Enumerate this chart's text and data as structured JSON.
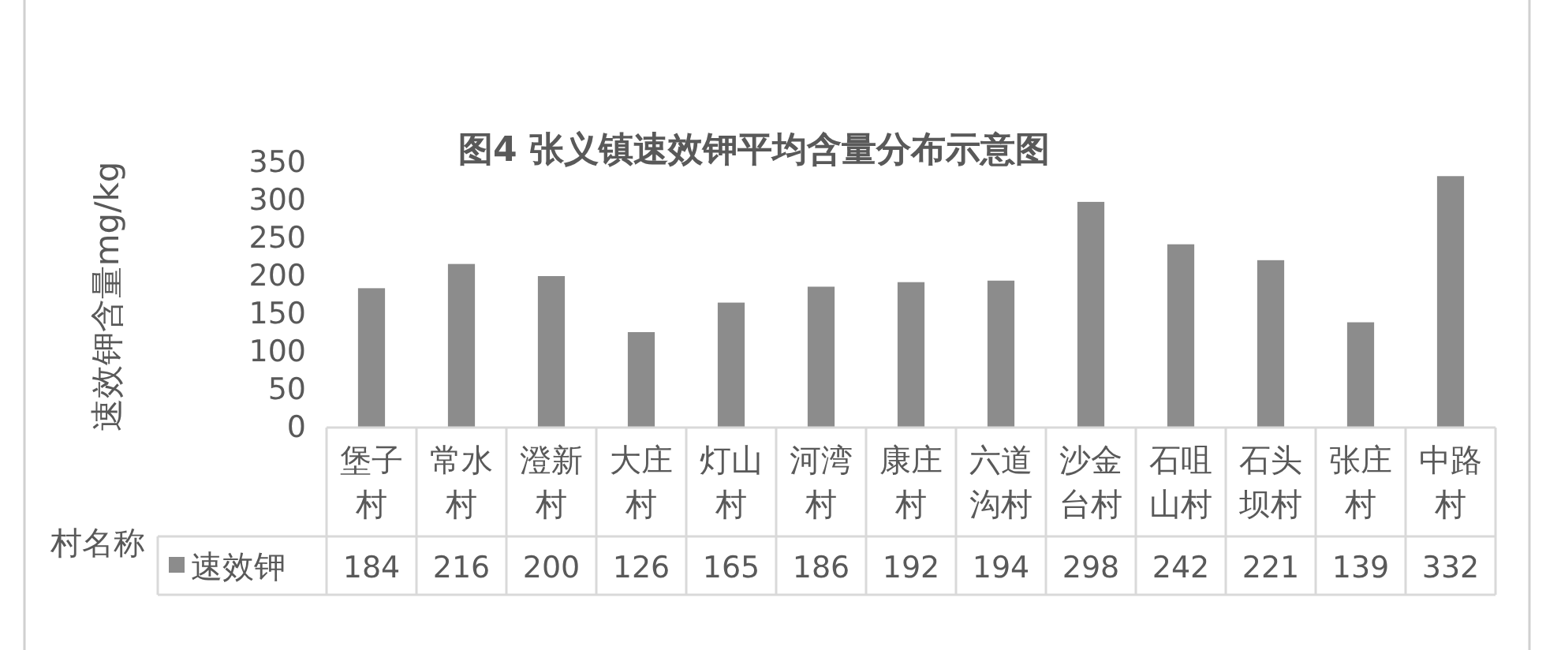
{
  "chart_data": {
    "type": "bar",
    "title": "图4 张义镇速效钾平均含量分布示意图",
    "xlabel": "村名称",
    "ylabel": "速效钾含量mg/kg",
    "categories": [
      "堡子村",
      "常水村",
      "澄新村",
      "大庄村",
      "灯山村",
      "河湾村",
      "康庄村",
      "六道沟村",
      "沙金台村",
      "石咀山村",
      "石头坝村",
      "张庄村",
      "中路村"
    ],
    "series": [
      {
        "name": "速效钾",
        "color": "#8c8c8c",
        "values": [
          184,
          216,
          200,
          126,
          165,
          186,
          192,
          194,
          298,
          242,
          221,
          139,
          332
        ]
      }
    ],
    "ylim": [
      0,
      350
    ],
    "yticks": [
      0,
      50,
      100,
      150,
      200,
      250,
      300,
      350
    ],
    "legend": "bottom left",
    "data_labels": true
  }
}
